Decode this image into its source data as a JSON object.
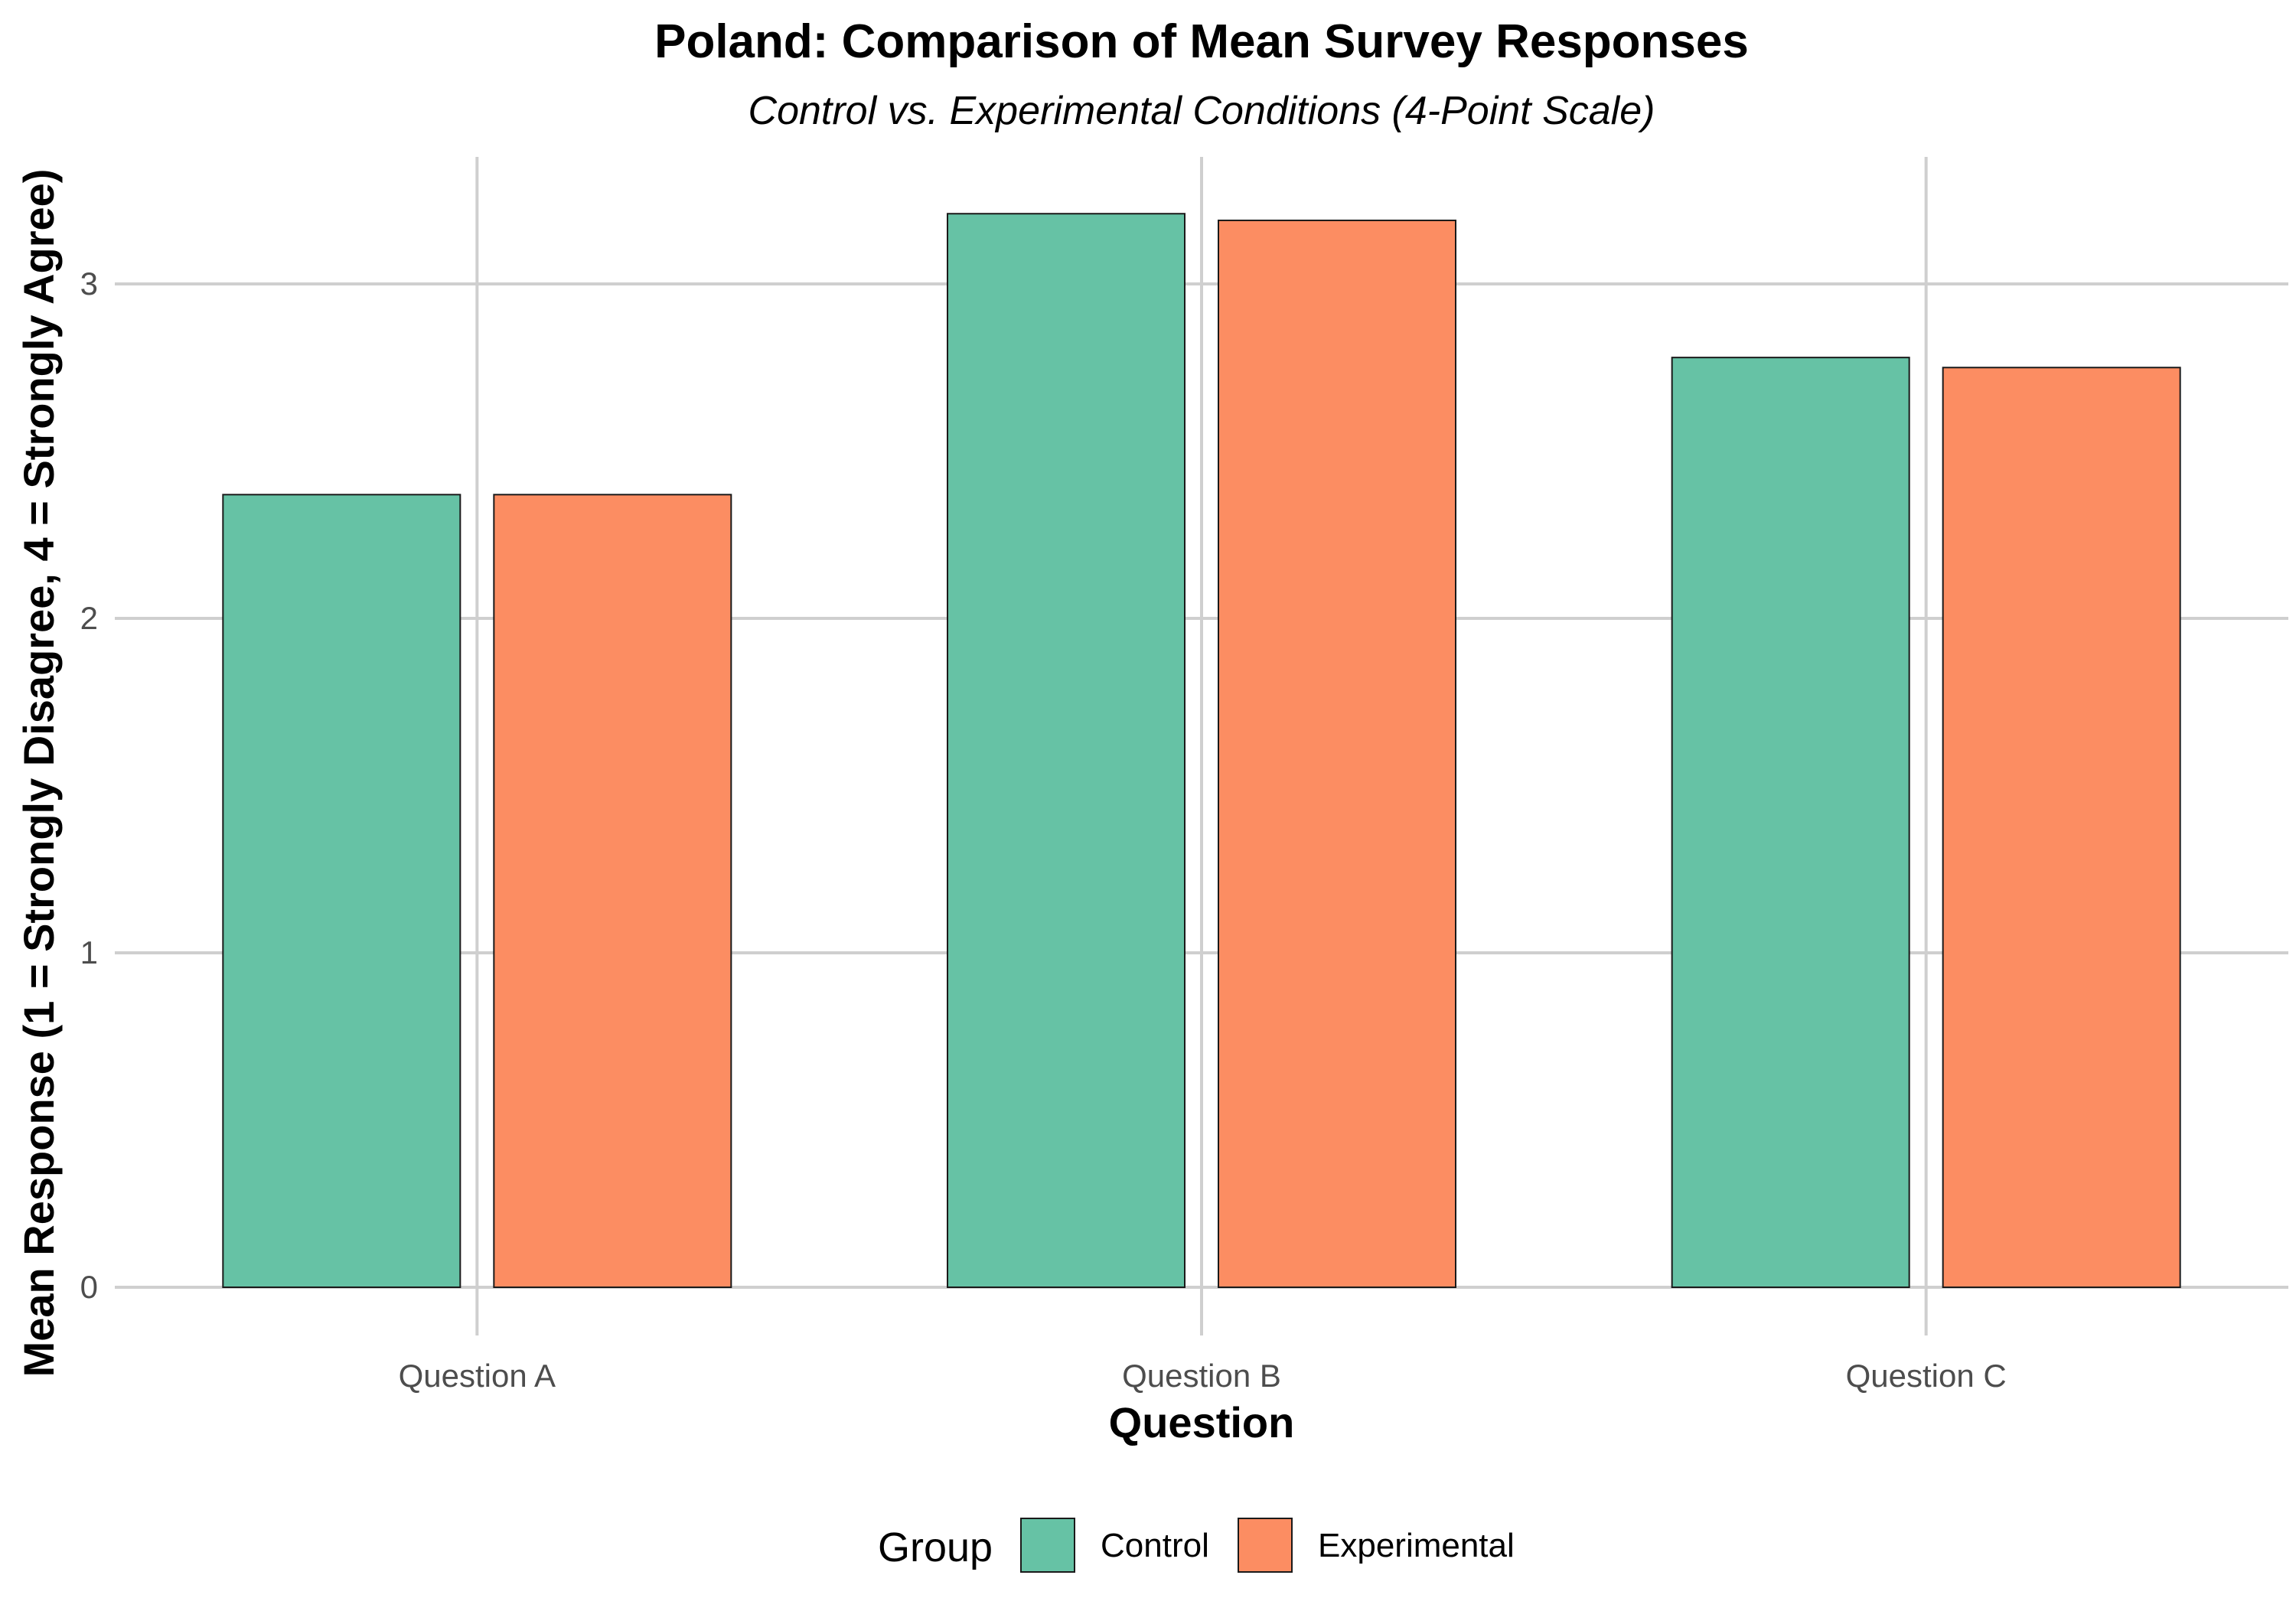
{
  "chart_data": {
    "type": "bar",
    "title": "Poland: Comparison of Mean Survey Responses",
    "subtitle": "Control vs. Experimental Conditions (4-Point Scale)",
    "xlabel": "Question",
    "ylabel": "Mean Response (1 = Strongly Disagree, 4 = Strongly Agree)",
    "categories": [
      "Question A",
      "Question B",
      "Question C"
    ],
    "series": [
      {
        "name": "Control",
        "color": "#66c2a5",
        "values": [
          2.37,
          3.21,
          2.78
        ]
      },
      {
        "name": "Experimental",
        "color": "#fc8d62",
        "values": [
          2.37,
          3.19,
          2.75
        ]
      }
    ],
    "ylim": [
      0,
      3.35
    ],
    "yticks": [
      0,
      1,
      2,
      3
    ],
    "grid": true,
    "legend": {
      "title": "Group",
      "position": "bottom"
    }
  }
}
